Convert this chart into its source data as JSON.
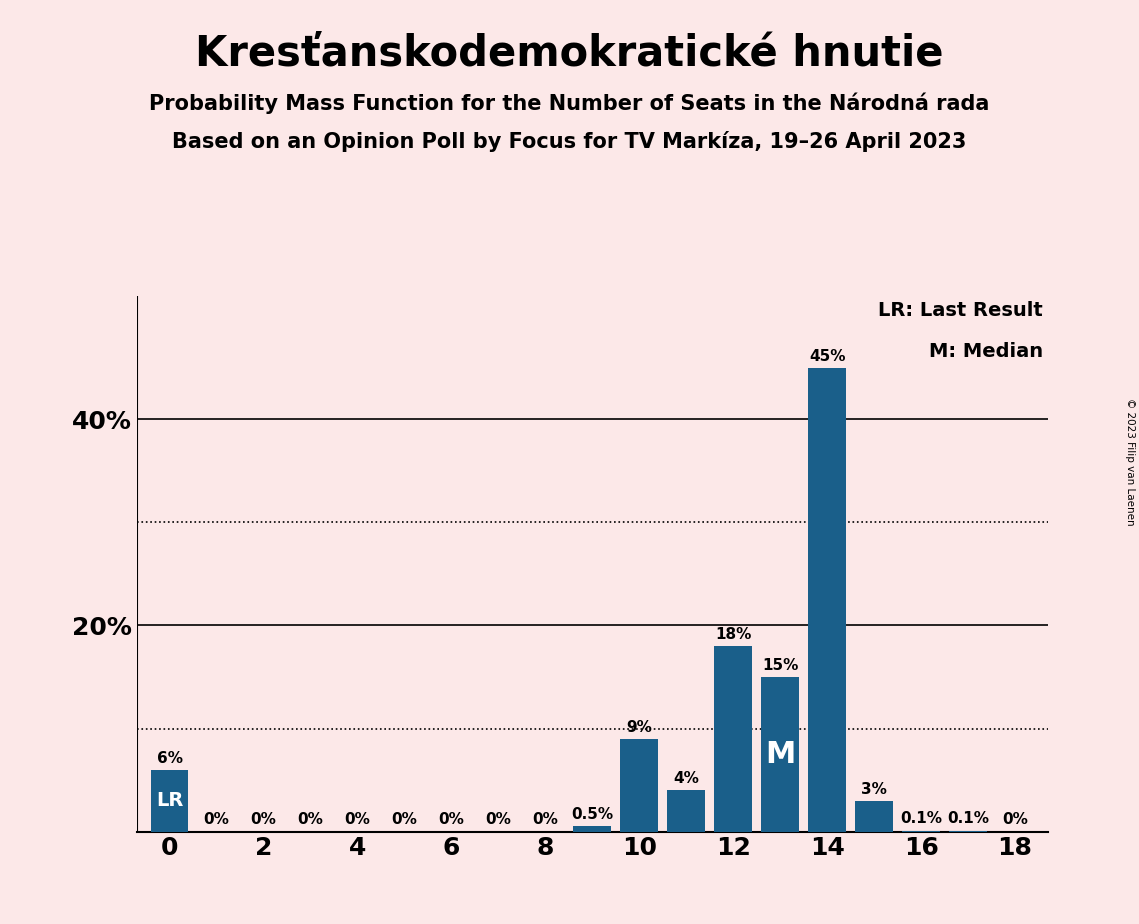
{
  "title": "Kresťanskodemokratické hnutie",
  "subtitle1": "Probability Mass Function for the Number of Seats in the Národná rada",
  "subtitle2": "Based on an Opinion Poll by Focus for TV Markíza, 19–26 April 2023",
  "copyright": "© 2023 Filip van Laenen",
  "seats": [
    0,
    1,
    2,
    3,
    4,
    5,
    6,
    7,
    8,
    9,
    10,
    11,
    12,
    13,
    14,
    15,
    16,
    17,
    18
  ],
  "probabilities": [
    6.0,
    0.0,
    0.0,
    0.0,
    0.0,
    0.0,
    0.0,
    0.0,
    0.0,
    0.5,
    9.0,
    4.0,
    18.0,
    15.0,
    45.0,
    3.0,
    0.1,
    0.1,
    0.0
  ],
  "bar_color": "#1a5f8a",
  "lr_seat": 0,
  "median_seat": 13,
  "lr_label": "LR",
  "median_label": "M",
  "legend_lr": "LR: Last Result",
  "legend_m": "M: Median",
  "background_color": "#fce8e8",
  "bar_label_fontsize": 11,
  "title_fontsize": 30,
  "subtitle_fontsize": 15,
  "ytick_values": [
    20,
    40
  ],
  "ytick_labels": [
    "20%",
    "40%"
  ],
  "dotted_lines": [
    10,
    30
  ],
  "solid_lines": [
    20,
    40
  ],
  "xlim": [
    -0.7,
    18.7
  ],
  "ylim": [
    0,
    52
  ],
  "xtick_values": [
    0,
    2,
    4,
    6,
    8,
    10,
    12,
    14,
    16,
    18
  ]
}
